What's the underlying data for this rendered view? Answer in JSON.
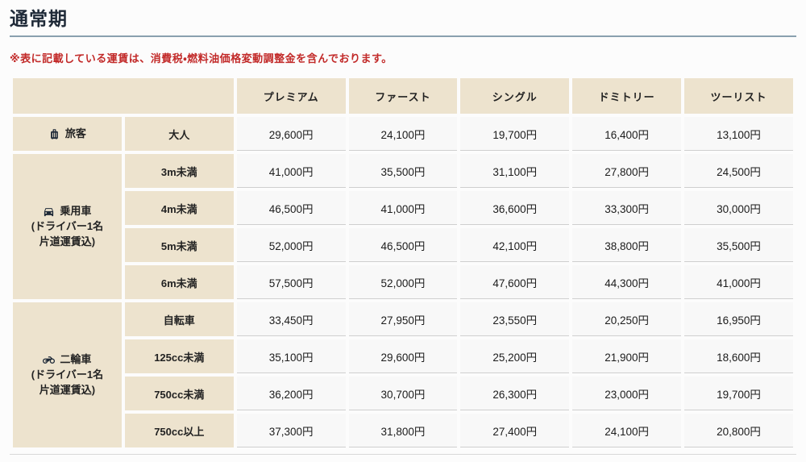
{
  "page": {
    "title": "通常期",
    "note": "※表に記載している運賃は、消費税・燃料油価格変動調整金を含んでおります。"
  },
  "colors": {
    "header_beige": "#ede3ce",
    "value_cell_bg": "#f8f8f8",
    "value_cell_border": "#cfcfcf",
    "title_text": "#1f2a38",
    "note_red": "#c22a29",
    "divider_blue_gray": "#8aa0af",
    "icon_navy": "#1f2a38"
  },
  "table": {
    "columns": [
      "プレミアム",
      "ファースト",
      "シングル",
      "ドミトリー",
      "ツーリスト"
    ],
    "groups": [
      {
        "icon": "luggage-icon",
        "label": "旅客",
        "sublabel_lines": [],
        "rows": [
          {
            "label": "大人",
            "values": [
              "29,600円",
              "24,100円",
              "19,700円",
              "16,400円",
              "13,100円"
            ]
          }
        ]
      },
      {
        "icon": "car-icon",
        "label": "乗用車",
        "sublabel_lines": [
          "(ドライバー1名",
          "片道運賃込)"
        ],
        "rows": [
          {
            "label": "3m未満",
            "values": [
              "41,000円",
              "35,500円",
              "31,100円",
              "27,800円",
              "24,500円"
            ]
          },
          {
            "label": "4m未満",
            "values": [
              "46,500円",
              "41,000円",
              "36,600円",
              "33,300円",
              "30,000円"
            ]
          },
          {
            "label": "5m未満",
            "values": [
              "52,000円",
              "46,500円",
              "42,100円",
              "38,800円",
              "35,500円"
            ]
          },
          {
            "label": "6m未満",
            "values": [
              "57,500円",
              "52,000円",
              "47,600円",
              "44,300円",
              "41,000円"
            ]
          }
        ]
      },
      {
        "icon": "motorcycle-icon",
        "label": "二輪車",
        "sublabel_lines": [
          "(ドライバー1名",
          "片道運賃込)"
        ],
        "rows": [
          {
            "label": "自転車",
            "values": [
              "33,450円",
              "27,950円",
              "23,550円",
              "20,250円",
              "16,950円"
            ]
          },
          {
            "label": "125cc未満",
            "values": [
              "35,100円",
              "29,600円",
              "25,200円",
              "21,900円",
              "18,600円"
            ]
          },
          {
            "label": "750cc未満",
            "values": [
              "36,200円",
              "30,700円",
              "26,300円",
              "23,000円",
              "19,700円"
            ]
          },
          {
            "label": "750cc以上",
            "values": [
              "37,300円",
              "31,800円",
              "27,400円",
              "24,100円",
              "20,800円"
            ]
          }
        ]
      }
    ]
  }
}
